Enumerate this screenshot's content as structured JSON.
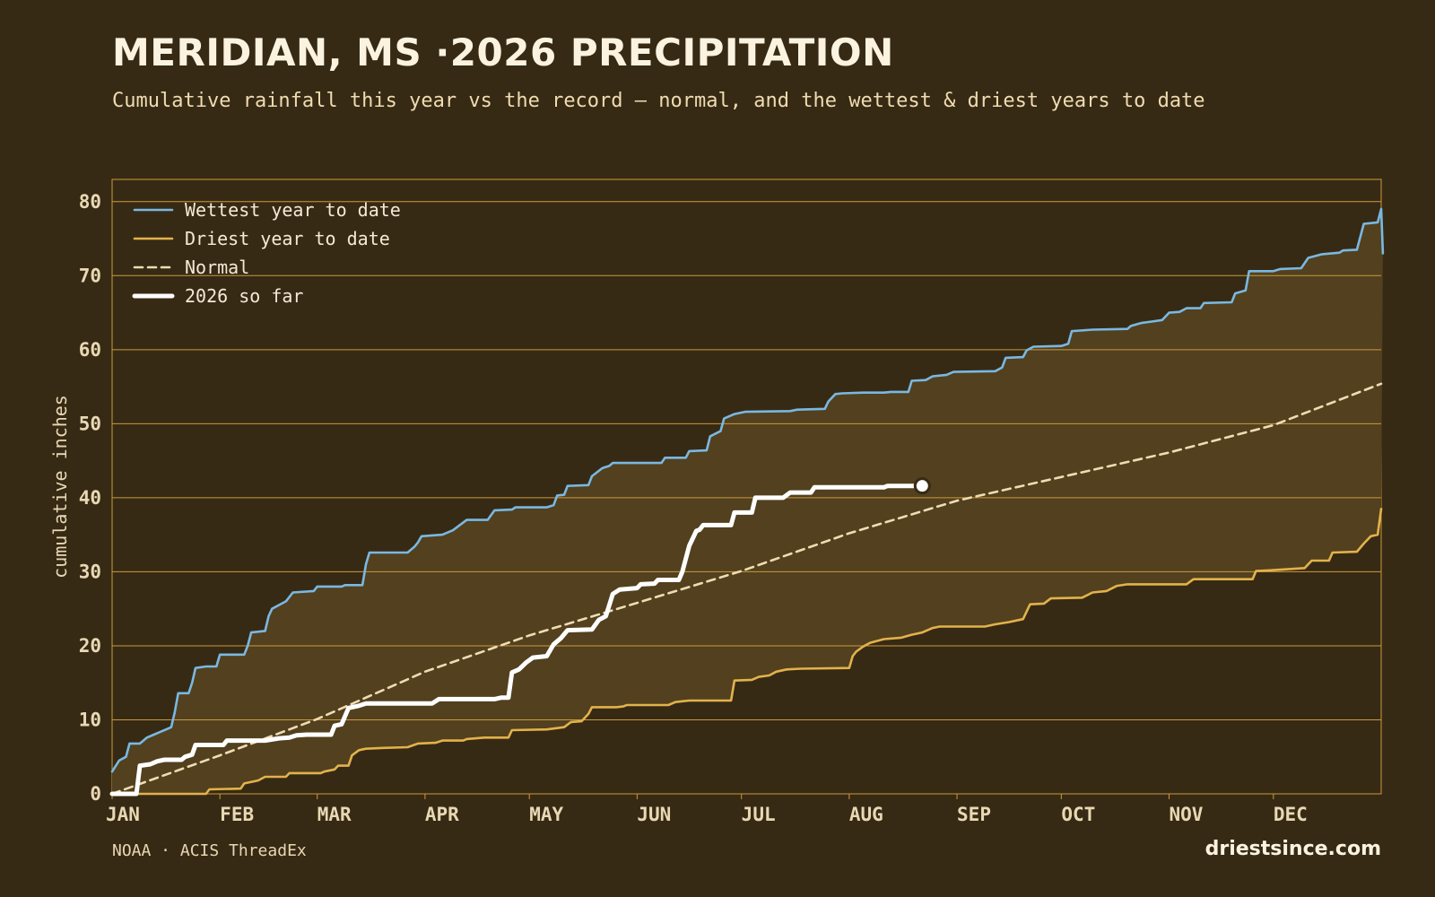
{
  "title": "MERIDIAN, MS ·2026 PRECIPITATION",
  "subtitle": "Cumulative rainfall this year vs the record — normal, and the wettest & driest years to date",
  "source": "NOAA · ACIS ThreadEx",
  "brand": "driestsince.com",
  "colors": {
    "background": "#372a14",
    "band": "#52401e",
    "grid": "#c99a3e",
    "wettest": "#7ab8e2",
    "driest": "#e2b24c",
    "normal": "#efdcb2",
    "current": "#ffffff",
    "tick": "#e8d8b4"
  },
  "chart_data": {
    "type": "line",
    "title": "MERIDIAN, MS ·2026 PRECIPITATION",
    "xlabel": "",
    "ylabel": "cumulative inches",
    "ylim": [
      0,
      83
    ],
    "xlim_days": [
      0,
      365
    ],
    "grid": true,
    "legend_placement": "top-left",
    "x_ticks": [
      {
        "label": "JAN",
        "day": 0
      },
      {
        "label": "FEB",
        "day": 31
      },
      {
        "label": "MAR",
        "day": 59
      },
      {
        "label": "APR",
        "day": 90
      },
      {
        "label": "MAY",
        "day": 120
      },
      {
        "label": "JUN",
        "day": 151
      },
      {
        "label": "JUL",
        "day": 181
      },
      {
        "label": "AUG",
        "day": 212
      },
      {
        "label": "SEP",
        "day": 243
      },
      {
        "label": "OCT",
        "day": 273
      },
      {
        "label": "NOV",
        "day": 304
      },
      {
        "label": "DEC",
        "day": 334
      }
    ],
    "y_ticks": [
      0,
      10,
      20,
      30,
      40,
      50,
      60,
      70,
      80
    ],
    "series": [
      {
        "name": "Wettest year to date",
        "style": "solid",
        "points": [
          [
            0,
            3
          ],
          [
            2,
            4.5
          ],
          [
            4,
            5
          ],
          [
            5,
            6.8
          ],
          [
            8,
            6.8
          ],
          [
            9,
            7.2
          ],
          [
            10,
            7.6
          ],
          [
            12,
            8
          ],
          [
            14,
            8.4
          ],
          [
            16,
            8.8
          ],
          [
            17,
            9
          ],
          [
            18,
            11
          ],
          [
            19,
            13.6
          ],
          [
            22,
            13.6
          ],
          [
            23,
            15
          ],
          [
            24,
            17
          ],
          [
            27,
            17.2
          ],
          [
            30,
            17.2
          ],
          [
            31,
            18.8
          ],
          [
            38,
            18.8
          ],
          [
            39,
            20
          ],
          [
            40,
            21.8
          ],
          [
            44,
            22
          ],
          [
            45,
            24
          ],
          [
            46,
            25
          ],
          [
            48,
            25.5
          ],
          [
            50,
            26
          ],
          [
            52,
            27.2
          ],
          [
            58,
            27.4
          ],
          [
            59,
            28
          ],
          [
            66,
            28
          ],
          [
            67,
            28.2
          ],
          [
            72,
            28.2
          ],
          [
            73,
            31
          ],
          [
            74,
            32.6
          ],
          [
            85,
            32.6
          ],
          [
            87,
            33.4
          ],
          [
            88,
            34
          ],
          [
            89,
            34.8
          ],
          [
            95,
            35
          ],
          [
            98,
            35.6
          ],
          [
            102,
            37
          ],
          [
            108,
            37
          ],
          [
            110,
            38.3
          ],
          [
            115,
            38.4
          ],
          [
            116,
            38.7
          ],
          [
            125,
            38.7
          ],
          [
            127,
            39
          ],
          [
            128,
            40.3
          ],
          [
            130,
            40.4
          ],
          [
            131,
            41.6
          ],
          [
            137,
            41.7
          ],
          [
            138,
            42.9
          ],
          [
            141,
            44
          ],
          [
            143,
            44.3
          ],
          [
            144,
            44.7
          ],
          [
            158,
            44.7
          ],
          [
            159,
            45.4
          ],
          [
            165,
            45.4
          ],
          [
            166,
            46.3
          ],
          [
            171,
            46.4
          ],
          [
            172,
            48.3
          ],
          [
            175,
            49
          ],
          [
            176,
            50.7
          ],
          [
            179,
            51.3
          ],
          [
            182,
            51.6
          ],
          [
            195,
            51.7
          ],
          [
            197,
            51.9
          ],
          [
            205,
            52
          ],
          [
            206,
            53
          ],
          [
            208,
            54
          ],
          [
            210,
            54.1
          ],
          [
            216,
            54.2
          ],
          [
            222,
            54.2
          ],
          [
            224,
            54.3
          ],
          [
            229,
            54.3
          ],
          [
            230,
            55.8
          ],
          [
            234,
            55.9
          ],
          [
            236,
            56.4
          ],
          [
            240,
            56.6
          ],
          [
            242,
            57
          ],
          [
            254,
            57.1
          ],
          [
            256,
            57.6
          ],
          [
            257,
            58.9
          ],
          [
            262,
            59
          ],
          [
            263,
            59.9
          ],
          [
            265,
            60.4
          ],
          [
            273,
            60.5
          ],
          [
            275,
            60.8
          ],
          [
            276,
            62.5
          ],
          [
            282,
            62.7
          ],
          [
            292,
            62.8
          ],
          [
            293,
            63.2
          ],
          [
            296,
            63.6
          ],
          [
            299,
            63.8
          ],
          [
            302,
            64
          ],
          [
            304,
            65
          ],
          [
            307,
            65.1
          ],
          [
            309,
            65.6
          ],
          [
            313,
            65.6
          ],
          [
            314,
            66.3
          ],
          [
            322,
            66.4
          ],
          [
            323,
            67.6
          ],
          [
            326,
            68
          ],
          [
            327,
            70.6
          ],
          [
            334,
            70.6
          ],
          [
            336,
            70.9
          ],
          [
            342,
            71
          ],
          [
            344,
            72.4
          ],
          [
            348,
            72.9
          ],
          [
            353,
            73.1
          ],
          [
            354,
            73.4
          ],
          [
            358,
            73.5
          ],
          [
            360,
            77
          ],
          [
            364,
            77.2
          ],
          [
            365,
            79
          ],
          [
            365.5,
            73
          ]
        ]
      },
      {
        "name": "Driest year to date",
        "style": "solid",
        "points": [
          [
            0,
            0
          ],
          [
            27,
            0
          ],
          [
            28,
            0.6
          ],
          [
            37,
            0.7
          ],
          [
            38,
            1.4
          ],
          [
            42,
            1.8
          ],
          [
            44,
            2.3
          ],
          [
            50,
            2.3
          ],
          [
            51,
            2.8
          ],
          [
            60,
            2.8
          ],
          [
            61,
            3
          ],
          [
            64,
            3.3
          ],
          [
            65,
            3.8
          ],
          [
            68,
            3.8
          ],
          [
            69,
            5.2
          ],
          [
            71,
            5.9
          ],
          [
            73,
            6.1
          ],
          [
            78,
            6.2
          ],
          [
            85,
            6.3
          ],
          [
            88,
            6.8
          ],
          [
            93,
            6.9
          ],
          [
            95,
            7.2
          ],
          [
            101,
            7.2
          ],
          [
            102,
            7.4
          ],
          [
            107,
            7.6
          ],
          [
            114,
            7.6
          ],
          [
            115,
            8.6
          ],
          [
            125,
            8.7
          ],
          [
            130,
            9
          ],
          [
            132,
            9.7
          ],
          [
            135,
            9.8
          ],
          [
            137,
            10.8
          ],
          [
            138,
            11.7
          ],
          [
            145,
            11.7
          ],
          [
            147,
            11.8
          ],
          [
            148,
            12
          ],
          [
            160,
            12
          ],
          [
            162,
            12.4
          ],
          [
            166,
            12.6
          ],
          [
            178,
            12.6
          ],
          [
            179,
            15.3
          ],
          [
            184,
            15.4
          ],
          [
            186,
            15.8
          ],
          [
            189,
            16
          ],
          [
            191,
            16.5
          ],
          [
            194,
            16.8
          ],
          [
            198,
            16.9
          ],
          [
            212,
            17
          ],
          [
            213,
            18.6
          ],
          [
            214,
            19.2
          ],
          [
            216,
            19.9
          ],
          [
            218,
            20.4
          ],
          [
            222,
            20.9
          ],
          [
            227,
            21.1
          ],
          [
            230,
            21.5
          ],
          [
            233,
            21.8
          ],
          [
            236,
            22.4
          ],
          [
            238,
            22.6
          ],
          [
            251,
            22.6
          ],
          [
            254,
            22.9
          ],
          [
            258,
            23.2
          ],
          [
            262,
            23.6
          ],
          [
            264,
            25.6
          ],
          [
            268,
            25.7
          ],
          [
            270,
            26.4
          ],
          [
            279,
            26.5
          ],
          [
            282,
            27.2
          ],
          [
            286,
            27.4
          ],
          [
            289,
            28.1
          ],
          [
            292,
            28.3
          ],
          [
            298,
            28.3
          ],
          [
            306,
            28.3
          ],
          [
            309,
            28.3
          ],
          [
            311,
            29
          ],
          [
            328,
            29
          ],
          [
            329,
            30.1
          ],
          [
            333,
            30.2
          ],
          [
            343,
            30.5
          ],
          [
            345,
            31.5
          ],
          [
            350,
            31.5
          ],
          [
            351,
            32.6
          ],
          [
            358,
            32.7
          ],
          [
            360,
            33.8
          ],
          [
            362,
            34.8
          ],
          [
            364,
            35
          ],
          [
            365,
            38.5
          ]
        ]
      },
      {
        "name": "Normal",
        "style": "dashed",
        "points": [
          [
            0,
            0
          ],
          [
            31,
            5.2
          ],
          [
            59,
            10.1
          ],
          [
            90,
            16.5
          ],
          [
            120,
            21.4
          ],
          [
            151,
            25.8
          ],
          [
            181,
            30.1
          ],
          [
            212,
            35.2
          ],
          [
            243,
            39.6
          ],
          [
            273,
            42.8
          ],
          [
            304,
            46.1
          ],
          [
            334,
            49.8
          ],
          [
            365,
            55.4
          ]
        ]
      },
      {
        "name": "2026 so far",
        "style": "bold",
        "points": [
          [
            0,
            0
          ],
          [
            7,
            0
          ],
          [
            8,
            3.8
          ],
          [
            11,
            4
          ],
          [
            13,
            4.4
          ],
          [
            15,
            4.6
          ],
          [
            20,
            4.6
          ],
          [
            21,
            5
          ],
          [
            23,
            5.3
          ],
          [
            24,
            6.6
          ],
          [
            32,
            6.6
          ],
          [
            33,
            7.2
          ],
          [
            44,
            7.2
          ],
          [
            48,
            7.5
          ],
          [
            51,
            7.6
          ],
          [
            53,
            7.9
          ],
          [
            56,
            8
          ],
          [
            63,
            8
          ],
          [
            64,
            9.2
          ],
          [
            66,
            9.4
          ],
          [
            68,
            11.6
          ],
          [
            71,
            11.9
          ],
          [
            73,
            12.2
          ],
          [
            92,
            12.2
          ],
          [
            94,
            12.8
          ],
          [
            110,
            12.8
          ],
          [
            112,
            13
          ],
          [
            114,
            13
          ],
          [
            115,
            16.4
          ],
          [
            117,
            16.8
          ],
          [
            119,
            17.7
          ],
          [
            121,
            18.4
          ],
          [
            125,
            18.6
          ],
          [
            127,
            20.2
          ],
          [
            129,
            21
          ],
          [
            131,
            22.1
          ],
          [
            138,
            22.2
          ],
          [
            140,
            23.5
          ],
          [
            142,
            24
          ],
          [
            143,
            25.5
          ],
          [
            144,
            27
          ],
          [
            146,
            27.6
          ],
          [
            151,
            27.8
          ],
          [
            152,
            28.3
          ],
          [
            156,
            28.4
          ],
          [
            157,
            28.9
          ],
          [
            163,
            28.9
          ],
          [
            164,
            30
          ],
          [
            166,
            33.5
          ],
          [
            168,
            35.5
          ],
          [
            169,
            35.7
          ],
          [
            170,
            36.3
          ],
          [
            178,
            36.3
          ],
          [
            179,
            38
          ],
          [
            184,
            38
          ],
          [
            185,
            40
          ],
          [
            193,
            40
          ],
          [
            195,
            40.7
          ],
          [
            201,
            40.7
          ],
          [
            202,
            41.4
          ],
          [
            222,
            41.4
          ],
          [
            223,
            41.6
          ],
          [
            231,
            41.6
          ]
        ]
      }
    ],
    "end_marker": {
      "series": "2026 so far",
      "day": 233,
      "value": 41.6
    }
  }
}
